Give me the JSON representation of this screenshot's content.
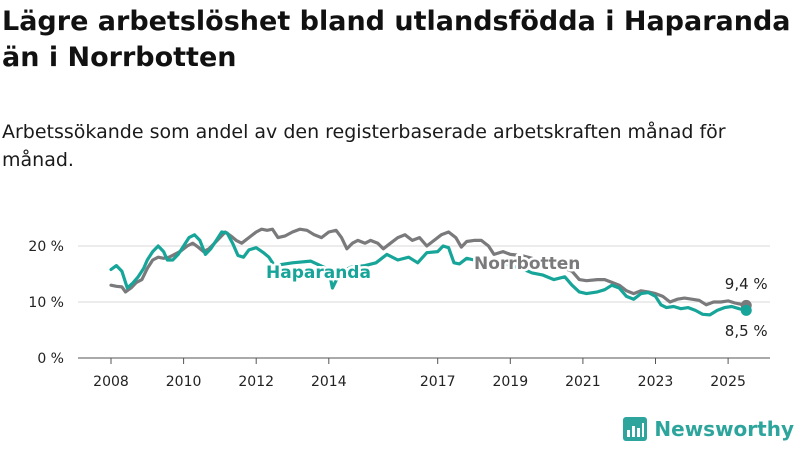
{
  "header": {
    "title": "Lägre arbetslöshet bland utlandsfödda i Haparanda än i Norrbotten",
    "subtitle": "Arbetssökande som andel av den registerbaserade arbetskraften månad för månad."
  },
  "brand": {
    "name": "Newsworthy",
    "color": "#2ea59c"
  },
  "colors": {
    "haparanda": "#17a599",
    "norrbotten": "#7a7a7c"
  },
  "chart_data": {
    "type": "line",
    "title": "Lägre arbetslöshet bland utlandsfödda i Haparanda än i Norrbotten",
    "subtitle": "Arbetssökande som andel av den registerbaserade arbetskraften månad för månad.",
    "xlabel": "",
    "ylabel": "",
    "xlim": [
      2007.75,
      2025.8
    ],
    "ylim": [
      0,
      20
    ],
    "y_ticks": [
      0,
      10,
      20
    ],
    "y_tick_labels": [
      "0 %",
      "10 %",
      "20 %"
    ],
    "x_ticks": [
      2008,
      2010,
      2012,
      2014,
      2017,
      2019,
      2021,
      2023,
      2025
    ],
    "x_tick_labels": [
      "2008",
      "2010",
      "2012",
      "2014",
      "2017",
      "2019",
      "2021",
      "2023",
      "2025"
    ],
    "grid": "horizontal",
    "series": [
      {
        "name": "Haparanda",
        "end_label": "8,5 %",
        "points": [
          [
            2008.0,
            15.8
          ],
          [
            2008.15,
            16.5
          ],
          [
            2008.3,
            15.5
          ],
          [
            2008.45,
            12.5
          ],
          [
            2008.6,
            13.4
          ],
          [
            2008.75,
            14.5
          ],
          [
            2008.9,
            16.0
          ],
          [
            2009.0,
            17.5
          ],
          [
            2009.15,
            19.0
          ],
          [
            2009.3,
            20.0
          ],
          [
            2009.45,
            19.0
          ],
          [
            2009.55,
            17.5
          ],
          [
            2009.7,
            17.5
          ],
          [
            2009.85,
            18.5
          ],
          [
            2010.0,
            20.0
          ],
          [
            2010.15,
            21.5
          ],
          [
            2010.3,
            22.0
          ],
          [
            2010.45,
            21.0
          ],
          [
            2010.6,
            18.5
          ],
          [
            2010.75,
            19.5
          ],
          [
            2010.9,
            21.0
          ],
          [
            2011.05,
            22.5
          ],
          [
            2011.2,
            22.3
          ],
          [
            2011.35,
            20.5
          ],
          [
            2011.5,
            18.3
          ],
          [
            2011.65,
            18.0
          ],
          [
            2011.8,
            19.3
          ],
          [
            2012.0,
            19.7
          ],
          [
            2012.2,
            18.8
          ],
          [
            2012.35,
            18.0
          ],
          [
            2012.5,
            16.5
          ],
          [
            2013.0,
            17.0
          ],
          [
            2013.5,
            17.3
          ],
          [
            2014.0,
            15.8
          ],
          [
            2014.1,
            12.5
          ],
          [
            2014.25,
            14.5
          ],
          [
            2014.4,
            15.5
          ],
          [
            2014.6,
            16.2
          ],
          [
            2015.0,
            16.5
          ],
          [
            2015.3,
            17.0
          ],
          [
            2015.6,
            18.5
          ],
          [
            2015.9,
            17.5
          ],
          [
            2016.2,
            18.0
          ],
          [
            2016.45,
            17.0
          ],
          [
            2016.7,
            18.8
          ],
          [
            2017.0,
            19.0
          ],
          [
            2017.15,
            20.0
          ],
          [
            2017.3,
            19.7
          ],
          [
            2017.45,
            17.0
          ],
          [
            2017.6,
            16.8
          ],
          [
            2017.8,
            17.8
          ],
          [
            2018.0,
            17.5
          ],
          [
            2018.2,
            17.0
          ],
          [
            2018.4,
            16.3
          ],
          [
            2018.6,
            17.5
          ],
          [
            2019.0,
            16.5
          ],
          [
            2019.3,
            16.0
          ],
          [
            2019.6,
            15.2
          ],
          [
            2019.9,
            14.8
          ],
          [
            2020.2,
            14.0
          ],
          [
            2020.5,
            14.5
          ],
          [
            2020.7,
            13.0
          ],
          [
            2020.9,
            11.8
          ],
          [
            2021.1,
            11.5
          ],
          [
            2021.4,
            11.8
          ],
          [
            2021.6,
            12.2
          ],
          [
            2021.8,
            13.0
          ],
          [
            2022.0,
            12.5
          ],
          [
            2022.2,
            11.0
          ],
          [
            2022.4,
            10.5
          ],
          [
            2022.6,
            11.5
          ],
          [
            2022.8,
            11.7
          ],
          [
            2023.0,
            11.0
          ],
          [
            2023.15,
            9.5
          ],
          [
            2023.3,
            9.0
          ],
          [
            2023.5,
            9.2
          ],
          [
            2023.7,
            8.8
          ],
          [
            2023.9,
            9.0
          ],
          [
            2024.1,
            8.5
          ],
          [
            2024.3,
            7.8
          ],
          [
            2024.5,
            7.7
          ],
          [
            2024.7,
            8.5
          ],
          [
            2024.9,
            9.0
          ],
          [
            2025.1,
            9.2
          ],
          [
            2025.3,
            8.8
          ],
          [
            2025.5,
            8.5
          ]
        ]
      },
      {
        "name": "Norrbotten",
        "end_label": "9,4 %",
        "points": [
          [
            2008.0,
            13.0
          ],
          [
            2008.15,
            12.8
          ],
          [
            2008.3,
            12.7
          ],
          [
            2008.4,
            11.8
          ],
          [
            2008.55,
            12.5
          ],
          [
            2008.7,
            13.5
          ],
          [
            2008.85,
            14.0
          ],
          [
            2009.0,
            16.0
          ],
          [
            2009.15,
            17.5
          ],
          [
            2009.3,
            18.0
          ],
          [
            2009.45,
            17.8
          ],
          [
            2009.6,
            18.0
          ],
          [
            2009.75,
            18.5
          ],
          [
            2009.9,
            19.0
          ],
          [
            2010.1,
            20.0
          ],
          [
            2010.25,
            20.5
          ],
          [
            2010.4,
            19.8
          ],
          [
            2010.55,
            19.0
          ],
          [
            2010.7,
            19.5
          ],
          [
            2010.85,
            20.5
          ],
          [
            2011.0,
            21.5
          ],
          [
            2011.15,
            22.5
          ],
          [
            2011.3,
            21.8
          ],
          [
            2011.45,
            21.0
          ],
          [
            2011.6,
            20.5
          ],
          [
            2011.8,
            21.5
          ],
          [
            2012.0,
            22.5
          ],
          [
            2012.15,
            23.0
          ],
          [
            2012.3,
            22.8
          ],
          [
            2012.45,
            23.0
          ],
          [
            2012.6,
            21.5
          ],
          [
            2012.8,
            21.8
          ],
          [
            2013.0,
            22.5
          ],
          [
            2013.2,
            23.0
          ],
          [
            2013.4,
            22.8
          ],
          [
            2013.6,
            22.0
          ],
          [
            2013.8,
            21.5
          ],
          [
            2014.0,
            22.5
          ],
          [
            2014.2,
            22.8
          ],
          [
            2014.35,
            21.5
          ],
          [
            2014.5,
            19.5
          ],
          [
            2014.65,
            20.5
          ],
          [
            2014.8,
            21.0
          ],
          [
            2015.0,
            20.5
          ],
          [
            2015.15,
            21.0
          ],
          [
            2015.35,
            20.5
          ],
          [
            2015.5,
            19.5
          ],
          [
            2015.7,
            20.5
          ],
          [
            2015.9,
            21.5
          ],
          [
            2016.1,
            22.0
          ],
          [
            2016.3,
            21.0
          ],
          [
            2016.5,
            21.5
          ],
          [
            2016.7,
            20.0
          ],
          [
            2016.9,
            21.0
          ],
          [
            2017.1,
            22.0
          ],
          [
            2017.3,
            22.5
          ],
          [
            2017.5,
            21.5
          ],
          [
            2017.65,
            19.8
          ],
          [
            2017.8,
            20.8
          ],
          [
            2018.0,
            21.0
          ],
          [
            2018.2,
            21.0
          ],
          [
            2018.4,
            20.0
          ],
          [
            2018.55,
            18.5
          ],
          [
            2018.8,
            19.0
          ],
          [
            2019.0,
            18.5
          ],
          [
            2019.3,
            18.3
          ],
          [
            2019.6,
            17.8
          ],
          [
            2019.9,
            17.0
          ],
          [
            2020.2,
            16.5
          ],
          [
            2020.5,
            16.0
          ],
          [
            2020.7,
            15.5
          ],
          [
            2020.9,
            14.0
          ],
          [
            2021.1,
            13.8
          ],
          [
            2021.4,
            14.0
          ],
          [
            2021.6,
            14.0
          ],
          [
            2021.8,
            13.5
          ],
          [
            2022.0,
            13.0
          ],
          [
            2022.2,
            12.0
          ],
          [
            2022.4,
            11.5
          ],
          [
            2022.6,
            12.0
          ],
          [
            2022.8,
            11.8
          ],
          [
            2023.0,
            11.5
          ],
          [
            2023.2,
            11.0
          ],
          [
            2023.4,
            10.0
          ],
          [
            2023.6,
            10.5
          ],
          [
            2023.8,
            10.7
          ],
          [
            2024.0,
            10.5
          ],
          [
            2024.2,
            10.3
          ],
          [
            2024.4,
            9.5
          ],
          [
            2024.6,
            10.0
          ],
          [
            2024.8,
            10.0
          ],
          [
            2025.0,
            10.2
          ],
          [
            2025.2,
            9.8
          ],
          [
            2025.5,
            9.4
          ]
        ]
      }
    ]
  }
}
